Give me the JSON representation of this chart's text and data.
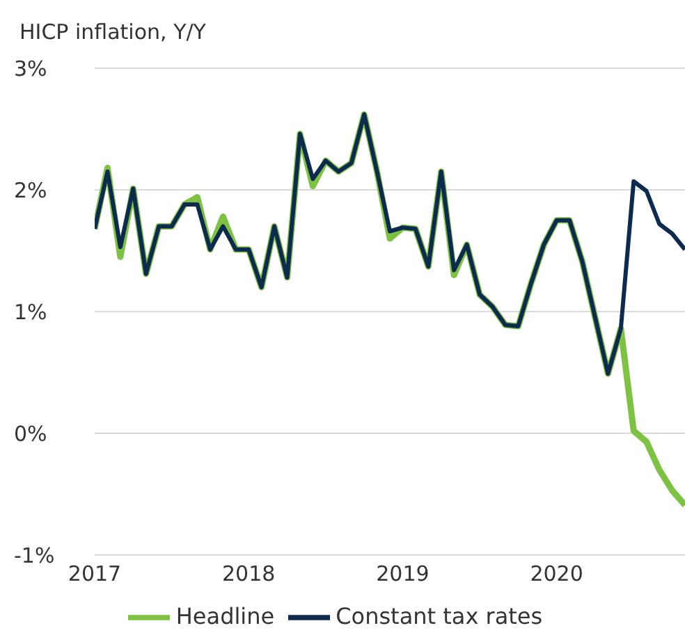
{
  "chart_data": {
    "type": "line",
    "title": "HICP inflation, Y/Y",
    "x": [
      "2017-01",
      "2017-02",
      "2017-03",
      "2017-04",
      "2017-05",
      "2017-06",
      "2017-07",
      "2017-08",
      "2017-09",
      "2017-10",
      "2017-11",
      "2017-12",
      "2018-01",
      "2018-02",
      "2018-03",
      "2018-04",
      "2018-05",
      "2018-06",
      "2018-07",
      "2018-08",
      "2018-09",
      "2018-10",
      "2018-11",
      "2018-12",
      "2019-01",
      "2019-02",
      "2019-03",
      "2019-04",
      "2019-05",
      "2019-06",
      "2019-07",
      "2019-08",
      "2019-09",
      "2019-10",
      "2019-11",
      "2019-12",
      "2020-01",
      "2020-02",
      "2020-03",
      "2020-04",
      "2020-05",
      "2020-06",
      "2020-07",
      "2020-08",
      "2020-09",
      "2020-10",
      "2020-11"
    ],
    "series": [
      {
        "name": "Headline",
        "color": "#7dc242",
        "values": [
          1.68,
          2.18,
          1.45,
          2.01,
          1.31,
          1.7,
          1.7,
          1.88,
          1.94,
          1.51,
          1.78,
          1.51,
          1.51,
          1.2,
          1.7,
          1.28,
          2.46,
          2.03,
          2.24,
          2.15,
          2.22,
          2.62,
          2.15,
          1.6,
          1.69,
          1.68,
          1.37,
          2.15,
          1.3,
          1.55,
          1.14,
          1.04,
          0.89,
          0.88,
          1.23,
          1.55,
          1.75,
          1.75,
          1.41,
          0.95,
          0.49,
          0.86,
          0.02,
          -0.07,
          -0.3,
          -0.47,
          -0.59
        ]
      },
      {
        "name": "Constant tax rates",
        "color": "#0d2a4f",
        "values": [
          1.68,
          2.15,
          1.53,
          2.01,
          1.31,
          1.7,
          1.7,
          1.88,
          1.88,
          1.51,
          1.7,
          1.51,
          1.51,
          1.2,
          1.7,
          1.28,
          2.46,
          2.09,
          2.24,
          2.15,
          2.22,
          2.62,
          2.15,
          1.66,
          1.69,
          1.68,
          1.37,
          2.15,
          1.34,
          1.55,
          1.14,
          1.04,
          0.89,
          0.88,
          1.23,
          1.55,
          1.75,
          1.75,
          1.41,
          0.95,
          0.49,
          0.86,
          2.07,
          1.99,
          1.72,
          1.64,
          1.51
        ]
      }
    ],
    "xlim": [
      "2017-01",
      "2020-11"
    ],
    "xticks": [
      "2017",
      "2018",
      "2019",
      "2020"
    ],
    "ylim": [
      -1,
      3
    ],
    "yticks": [
      {
        "value": 3,
        "label": "3%"
      },
      {
        "value": 2,
        "label": "2%"
      },
      {
        "value": 1,
        "label": "1%"
      },
      {
        "value": 0,
        "label": "0%"
      },
      {
        "value": -1,
        "label": "-1%"
      }
    ],
    "grid": "y",
    "legend": "bottom",
    "marker": "none",
    "line_style": "solid"
  }
}
